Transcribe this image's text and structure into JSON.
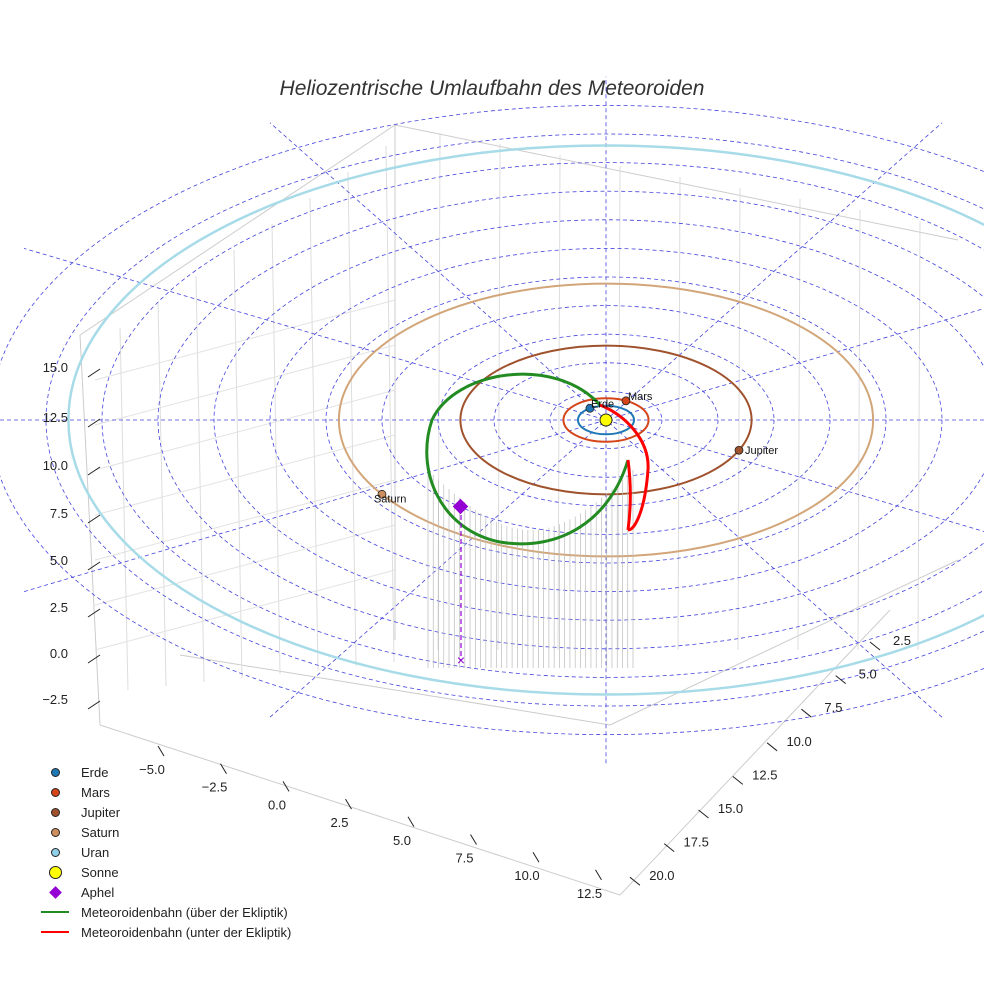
{
  "chart_data": {
    "type": "3d-line",
    "title": "Heliozentrische Umlaufbahn des Meteoroiden",
    "axes": {
      "x_ticks": [
        "−5.0",
        "−2.5",
        "0.0",
        "2.5",
        "5.0",
        "7.5",
        "10.0",
        "12.5"
      ],
      "y_ticks": [
        "2.5",
        "5.0",
        "7.5",
        "10.0",
        "12.5",
        "15.0",
        "17.5",
        "20.0"
      ],
      "z_ticks": [
        "−2.5",
        "0.0",
        "2.5",
        "5.0",
        "7.5",
        "10.0",
        "12.5",
        "15.0"
      ]
    },
    "planets": [
      {
        "name": "Erde",
        "color": "#1f77b4",
        "orbit_color": "#1f77b4",
        "orbit_radius_au": 1.0
      },
      {
        "name": "Mars",
        "color": "#d4451a",
        "orbit_color": "#d4451a",
        "orbit_radius_au": 1.52
      },
      {
        "name": "Jupiter",
        "color": "#a0522d",
        "orbit_color": "#a0522d",
        "orbit_radius_au": 5.2
      },
      {
        "name": "Saturn",
        "color": "#cd8f5f",
        "orbit_color": "#d2a679",
        "orbit_radius_au": 9.54
      },
      {
        "name": "Uran",
        "color": "#8fd0e8",
        "orbit_color": "#a7dbe8",
        "orbit_radius_au": 19.2
      }
    ],
    "sun": {
      "name": "Sonne",
      "color": "#ffff00"
    },
    "aphel": {
      "name": "Aphel",
      "color": "#9400d3"
    },
    "series": [
      {
        "name": "Meteoroidenbahn (über der Ekliptik)",
        "color": "#228b22"
      },
      {
        "name": "Meteoroidenbahn (unter der Ekliptik)",
        "color": "#ff0000"
      }
    ],
    "grid_color": "#4444dd"
  },
  "legend": [
    {
      "label": "Erde",
      "kind": "dot",
      "color": "#1f77b4"
    },
    {
      "label": "Mars",
      "kind": "dot",
      "color": "#d4451a"
    },
    {
      "label": "Jupiter",
      "kind": "dot",
      "color": "#a0522d"
    },
    {
      "label": "Saturn",
      "kind": "dot",
      "color": "#cd8f5f"
    },
    {
      "label": "Uran",
      "kind": "dot",
      "color": "#8fd0e8"
    },
    {
      "label": "Sonne",
      "kind": "bigdot",
      "color": "#ffff00"
    },
    {
      "label": "Aphel",
      "kind": "diamond",
      "color": "#9400d3"
    },
    {
      "label": "Meteoroidenbahn (über der Ekliptik)",
      "kind": "line",
      "color": "#228b22"
    },
    {
      "label": "Meteoroidenbahn (unter der Ekliptik)",
      "kind": "line",
      "color": "#ff0000"
    }
  ]
}
